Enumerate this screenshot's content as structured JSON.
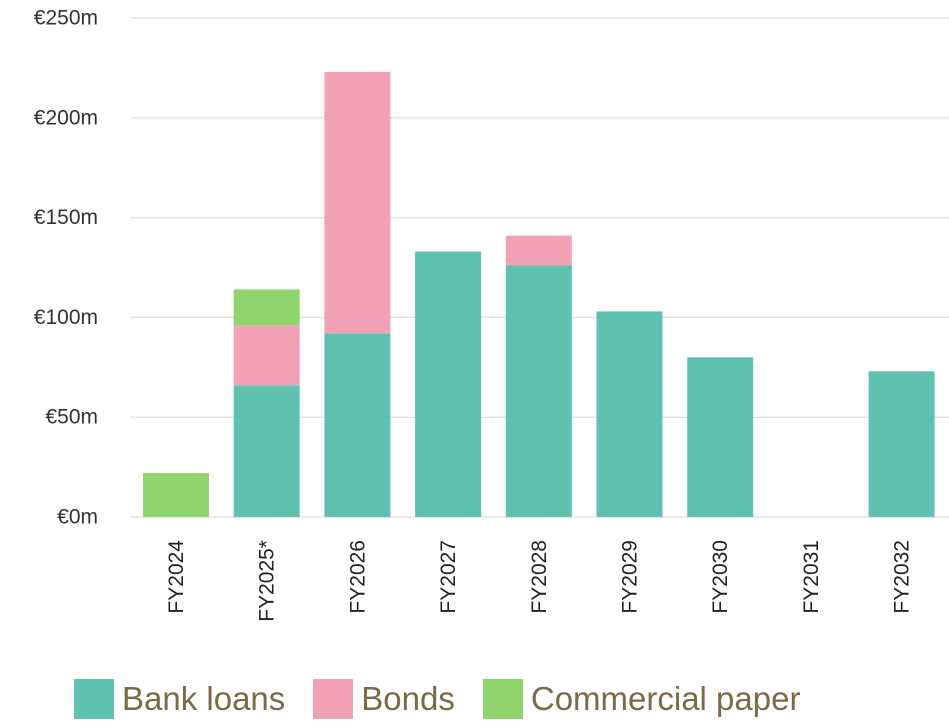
{
  "chart_data": {
    "type": "bar",
    "stacked": true,
    "categories": [
      "FY2024",
      "FY2025*",
      "FY2026",
      "FY2027",
      "FY2028",
      "FY2029",
      "FY2030",
      "FY2031",
      "FY2032"
    ],
    "series": [
      {
        "name": "Bank loans",
        "color": "#5fc2b0",
        "values": [
          0,
          66,
          92,
          133,
          126,
          103,
          80,
          0,
          73
        ]
      },
      {
        "name": "Bonds",
        "color": "#f2a2b4",
        "values": [
          0,
          30,
          131,
          0,
          15,
          0,
          0,
          0,
          0
        ]
      },
      {
        "name": "Commercial paper",
        "color": "#8fd46c",
        "values": [
          22,
          18,
          0,
          0,
          0,
          0,
          0,
          0,
          0
        ]
      }
    ],
    "ylim": [
      0,
      250
    ],
    "yticks": [
      0,
      50,
      100,
      150,
      200,
      250
    ],
    "ytick_labels": [
      "€0m",
      "€50m",
      "€100m",
      "€150m",
      "€200m",
      "€250m"
    ],
    "grid": true,
    "legend_position": "bottom",
    "title": "",
    "xlabel": "",
    "ylabel": ""
  }
}
